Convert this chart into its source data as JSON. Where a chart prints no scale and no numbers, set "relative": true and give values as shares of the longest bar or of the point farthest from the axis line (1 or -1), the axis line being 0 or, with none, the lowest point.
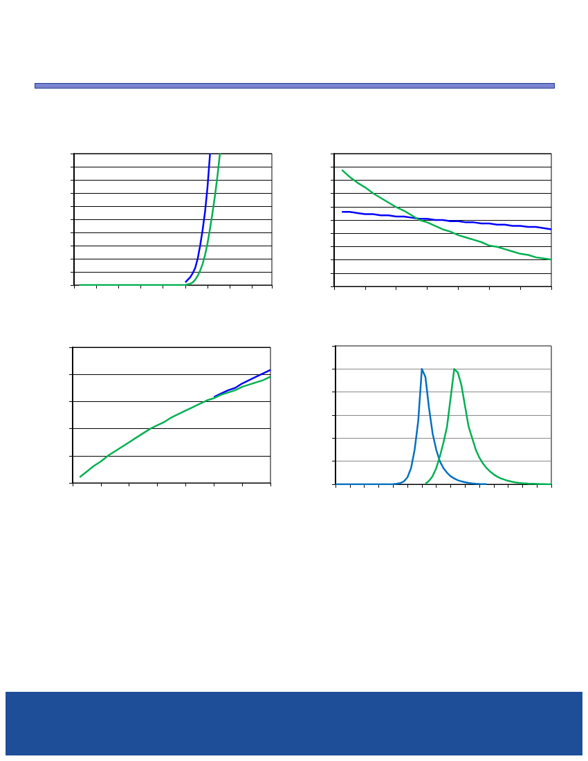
{
  "chart_data": [
    {
      "type": "line",
      "relative": true,
      "grid": "y",
      "marker": "none",
      "line_style": "solid",
      "categories": [
        null,
        null,
        null,
        null,
        null,
        null,
        null,
        null,
        null,
        null,
        null,
        null,
        null,
        null,
        null,
        null,
        null,
        null,
        null,
        null,
        null,
        null,
        null,
        null,
        null,
        null,
        null,
        null,
        null,
        null,
        null,
        null,
        null,
        null,
        null,
        null,
        null,
        null,
        null,
        null,
        null,
        null,
        null,
        null,
        null,
        null,
        null,
        null,
        null,
        null,
        null,
        null,
        null,
        null,
        null,
        null,
        null,
        null,
        null,
        null,
        null,
        null,
        null,
        null,
        null,
        null,
        null,
        null,
        null,
        null,
        null,
        null,
        null,
        null,
        null,
        null,
        null,
        null,
        null,
        null,
        null
      ],
      "series": [
        {
          "color": "#0000ff",
          "values": [
            null,
            null,
            null,
            null,
            null,
            null,
            null,
            null,
            null,
            null,
            null,
            null,
            null,
            null,
            null,
            null,
            null,
            null,
            null,
            null,
            null,
            null,
            null,
            null,
            null,
            null,
            null,
            null,
            null,
            null,
            null,
            null,
            null,
            null,
            null,
            null,
            null,
            null,
            null,
            null,
            null,
            null,
            null,
            null,
            null,
            0.02,
            0.04,
            0.06,
            0.09,
            0.13,
            0.2,
            0.3,
            0.42,
            0.56,
            0.75,
            1,
            null,
            null,
            null,
            null,
            null,
            null,
            null,
            null,
            null,
            null,
            null,
            null,
            null,
            null,
            null,
            null,
            null,
            null,
            null,
            null,
            null,
            null,
            null,
            null,
            null
          ]
        },
        {
          "color": "#00b050",
          "values": [
            null,
            null,
            0,
            0,
            0,
            0,
            0,
            0,
            0,
            0,
            0,
            0,
            0,
            0,
            0,
            0,
            0,
            0,
            0,
            0,
            0,
            0,
            0,
            0,
            0,
            0,
            0,
            0,
            0,
            0,
            0,
            0,
            0,
            0,
            0,
            0,
            0,
            0,
            0,
            0,
            0,
            0,
            0,
            0,
            0,
            0,
            0.005,
            0.01,
            0.02,
            0.04,
            0.07,
            0.11,
            0.16,
            0.23,
            0.32,
            0.43,
            0.55,
            0.68,
            0.83,
            1,
            null,
            null,
            null,
            null,
            null,
            null,
            null,
            null,
            null,
            null,
            null,
            null,
            null,
            null,
            null,
            null,
            null,
            null,
            null,
            null,
            null
          ]
        }
      ]
    },
    {
      "type": "line",
      "relative": true,
      "grid": "y",
      "marker": "none",
      "line_style": "solid",
      "categories": [
        null,
        null,
        null,
        null,
        null,
        null,
        null,
        null,
        null,
        null,
        null,
        null,
        null,
        null,
        null,
        null,
        null,
        null,
        null,
        null,
        null,
        null,
        null,
        null,
        null,
        null,
        null,
        null,
        null
      ],
      "series": [
        {
          "color": "#0000ff",
          "values": [
            null,
            0.64,
            0.64,
            0.63,
            0.62,
            0.62,
            0.61,
            0.61,
            0.6,
            0.6,
            0.59,
            0.58,
            0.58,
            0.57,
            0.57,
            0.56,
            0.56,
            0.55,
            0.55,
            0.54,
            0.54,
            0.53,
            0.53,
            0.52,
            0.52,
            0.51,
            0.51,
            0.5,
            0.49
          ]
        },
        {
          "color": "#00b050",
          "values": [
            null,
            1,
            0.94,
            0.89,
            0.85,
            0.8,
            0.76,
            0.72,
            0.68,
            0.65,
            0.61,
            0.57,
            0.55,
            0.52,
            0.49,
            0.47,
            0.44,
            0.42,
            0.4,
            0.38,
            0.35,
            0.34,
            0.32,
            0.3,
            0.28,
            0.27,
            0.25,
            0.24,
            0.23
          ]
        }
      ]
    },
    {
      "type": "line",
      "relative": true,
      "grid": "y",
      "marker": "none",
      "line_style": "solid",
      "categories": [
        null,
        null,
        null,
        null,
        null,
        null,
        null,
        null,
        null,
        null,
        null,
        null,
        null,
        null,
        null,
        null,
        null,
        null,
        null,
        null,
        null,
        null,
        null,
        null,
        null,
        null,
        null,
        null,
        null
      ],
      "series": [
        {
          "color": "#0000ff",
          "values": [
            null,
            null,
            null,
            null,
            null,
            null,
            null,
            null,
            null,
            null,
            null,
            null,
            null,
            null,
            null,
            null,
            null,
            null,
            null,
            null,
            0.76,
            0.79,
            0.82,
            0.84,
            0.88,
            0.91,
            0.94,
            0.97,
            1
          ]
        },
        {
          "color": "#00b050",
          "values": [
            null,
            0.05,
            0.1,
            0.15,
            0.19,
            0.24,
            0.28,
            0.32,
            0.36,
            0.4,
            0.44,
            0.48,
            0.51,
            0.54,
            0.58,
            0.61,
            0.64,
            0.67,
            0.7,
            0.73,
            0.75,
            0.78,
            0.8,
            0.82,
            0.85,
            0.87,
            0.89,
            0.91,
            0.94
          ]
        }
      ]
    },
    {
      "type": "line",
      "relative": true,
      "grid": "y",
      "marker": "none",
      "line_style": "solid",
      "categories": [
        null,
        null,
        null,
        null,
        null,
        null,
        null,
        null,
        null,
        null,
        null,
        null,
        null,
        null,
        null,
        null,
        null,
        null,
        null,
        null,
        null,
        null,
        null,
        null,
        null,
        null,
        null,
        null,
        null,
        null,
        null,
        null,
        null,
        null,
        null,
        null,
        null,
        null,
        null,
        null,
        null,
        null,
        null,
        null,
        null,
        null,
        null,
        null,
        null,
        null,
        null,
        null,
        null,
        null,
        null,
        null,
        null,
        null,
        null,
        null,
        null
      ],
      "series": [
        {
          "color": "#0070c0",
          "values": [
            0,
            0,
            0,
            0,
            0,
            0,
            0,
            0,
            0,
            0,
            0,
            0,
            0,
            0,
            0,
            0,
            0.002,
            0.005,
            0.01,
            0.025,
            0.06,
            0.14,
            0.3,
            0.55,
            1,
            0.93,
            0.66,
            0.44,
            0.3,
            0.2,
            0.14,
            0.1,
            0.07,
            0.05,
            0.035,
            0.025,
            0.018,
            0.012,
            0.008,
            0.005,
            0.003,
            0.002,
            0.001,
            null,
            null,
            null,
            null,
            null,
            null,
            null,
            null,
            null,
            null,
            null,
            null,
            null,
            null,
            null,
            null,
            null,
            null
          ]
        },
        {
          "color": "#00b050",
          "values": [
            null,
            null,
            null,
            null,
            null,
            null,
            null,
            null,
            null,
            null,
            null,
            null,
            null,
            null,
            null,
            null,
            null,
            null,
            null,
            null,
            null,
            null,
            null,
            null,
            null,
            0.005,
            0.03,
            0.07,
            0.14,
            0.24,
            0.36,
            0.5,
            0.75,
            1,
            0.97,
            0.86,
            0.68,
            0.5,
            0.4,
            0.3,
            0.23,
            0.18,
            0.14,
            0.11,
            0.085,
            0.065,
            0.05,
            0.04,
            0.03,
            0.023,
            0.017,
            0.012,
            0.009,
            0.007,
            0.005,
            0.004,
            0.003,
            0.002,
            0.001,
            0,
            0
          ]
        }
      ]
    }
  ]
}
